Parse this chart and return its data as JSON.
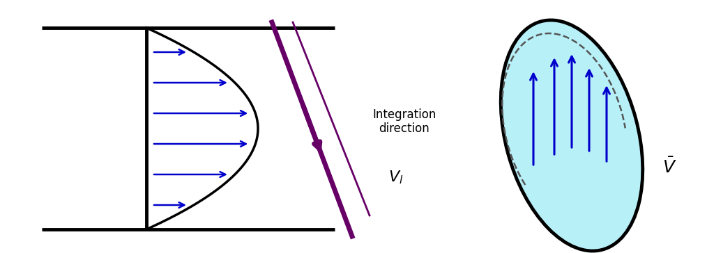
{
  "fig_width": 10.14,
  "fig_height": 3.64,
  "bg_color": "#ffffff",
  "pipe_wall_color": "#000000",
  "pipe_wall_lw": 3.5,
  "parabola_color": "#000000",
  "parabola_lw": 2.5,
  "arrow_color": "#0000cc",
  "arrow_lw": 1.8,
  "purple_color": "#660066",
  "purple_lw_thick": 5.0,
  "purple_lw_thin": 2.0,
  "integration_text": "Integration\ndirection",
  "vl_text": "$V_l$",
  "vbar_text": "$\\bar{V}$",
  "ellipse_fill_color": "#b8f0f8",
  "ellipse_edge_color": "#000000",
  "ellipse_lw": 3.5,
  "dashed_color": "#555555",
  "dashed_lw": 1.8
}
